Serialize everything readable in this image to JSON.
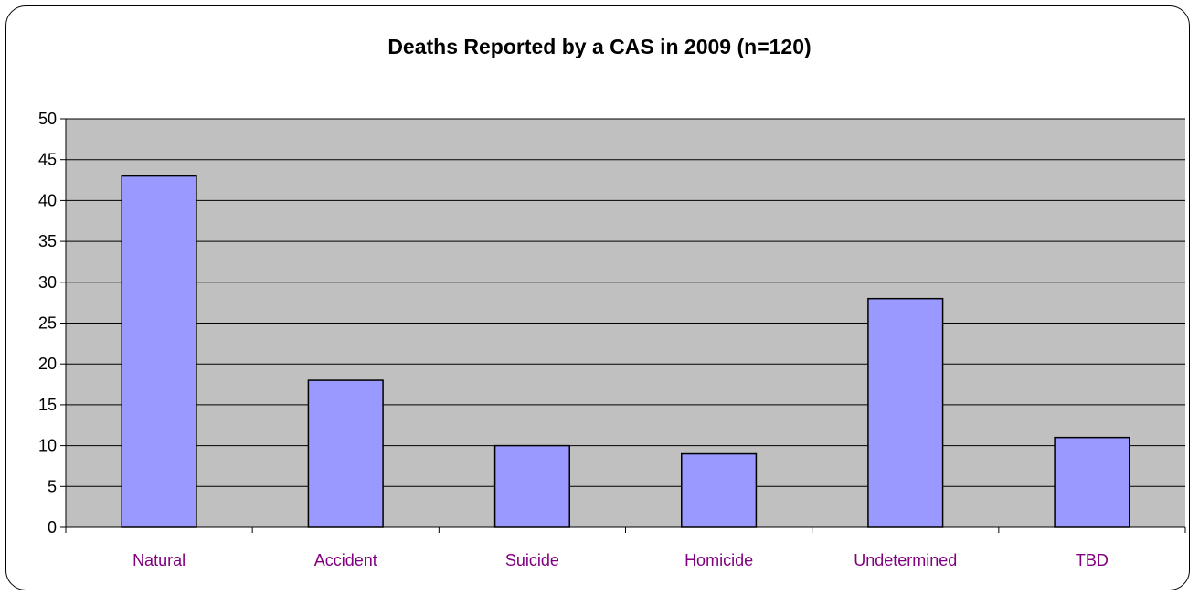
{
  "chart_data": {
    "type": "bar",
    "title": "Deaths Reported by a CAS in 2009 (n=120)",
    "xlabel": "",
    "ylabel": "",
    "categories": [
      "Natural",
      "Accident",
      "Suicide",
      "Homicide",
      "Undetermined",
      "TBD"
    ],
    "values": [
      43,
      18,
      10,
      9,
      28,
      11
    ],
    "ylim": [
      0,
      50
    ],
    "yticks": [
      "0",
      "5",
      "10",
      "15",
      "20",
      "25",
      "30",
      "35",
      "40",
      "45",
      "50"
    ],
    "grid": true,
    "legend": "none",
    "colors": {
      "bar": "#9999ff",
      "bar_outline": "#000000",
      "plot_background": "#c0c0c0",
      "gridline": "#000000",
      "category_label": "#800080"
    }
  }
}
